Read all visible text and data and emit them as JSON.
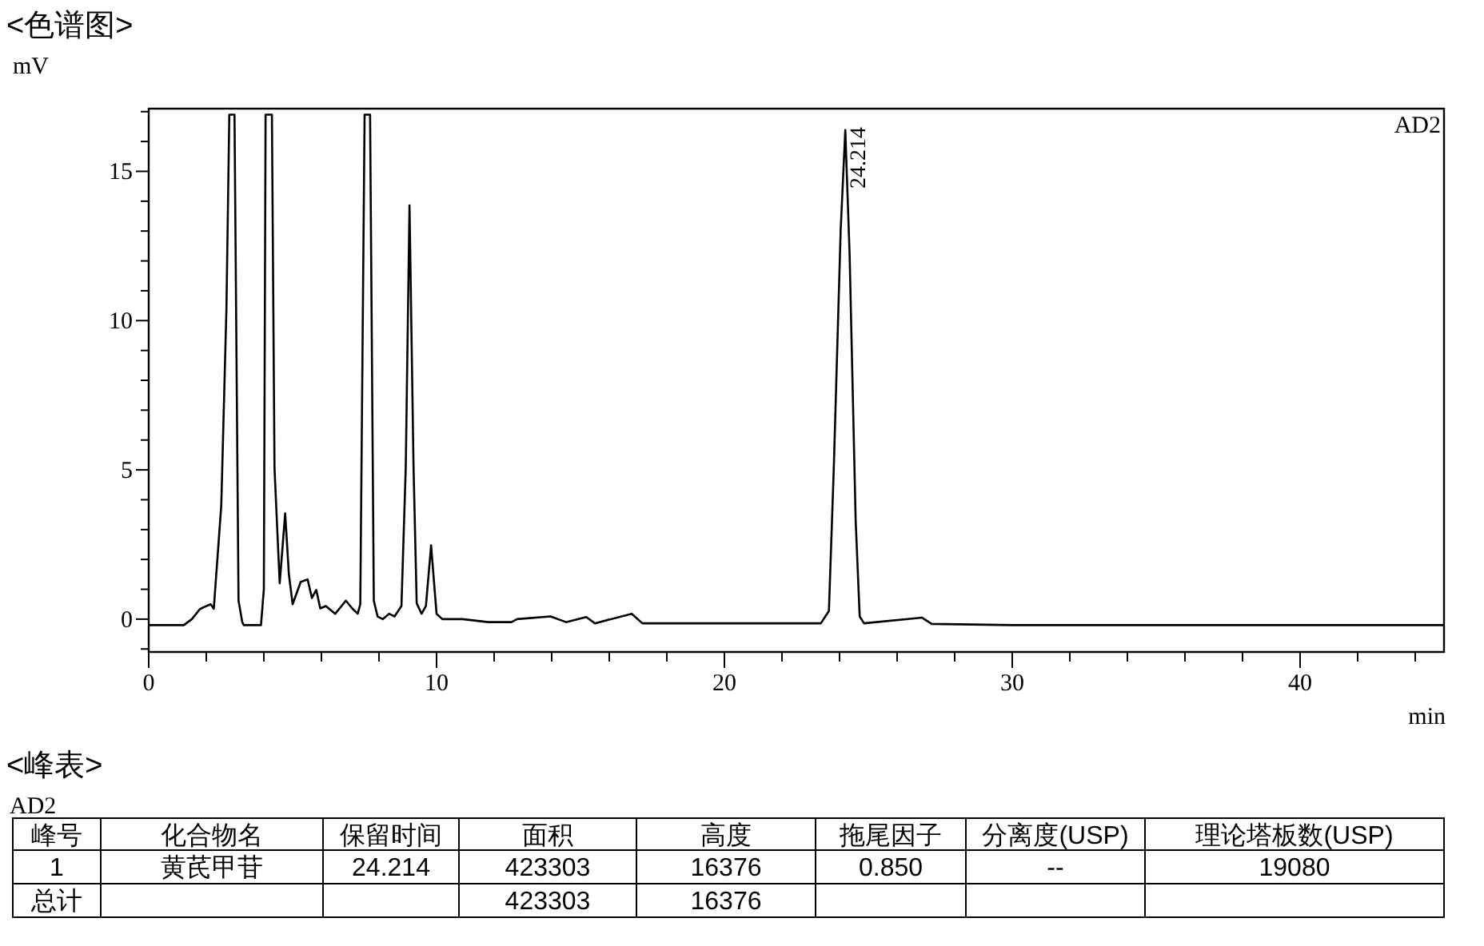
{
  "chart_data": {
    "type": "line",
    "title": "<色谱图>",
    "xlabel": "min",
    "ylabel": "mV",
    "x": [
      0,
      1.22,
      1.5,
      1.78,
      2.15,
      2.26,
      2.52,
      2.7,
      2.8,
      2.98,
      3.12,
      3.25,
      3.3,
      3.9,
      4.0,
      4.06,
      4.28,
      4.37,
      4.55,
      4.74,
      4.87,
      5.0,
      5.28,
      5.52,
      5.67,
      5.82,
      5.96,
      6.15,
      6.48,
      6.85,
      7.07,
      7.26,
      7.35,
      7.5,
      7.69,
      7.82,
      7.95,
      8.13,
      8.35,
      8.54,
      8.78,
      8.93,
      9.06,
      9.2,
      9.31,
      9.48,
      9.63,
      9.81,
      10.0,
      10.2,
      10.9,
      11.8,
      12.6,
      12.8,
      13.96,
      14.5,
      15.2,
      15.5,
      16.78,
      17.15,
      23.35,
      23.63,
      23.8,
      24.04,
      24.2,
      24.35,
      24.56,
      24.7,
      24.85,
      26.87,
      27.2,
      30,
      45
    ],
    "series": [
      {
        "color": "#000000",
        "values": [
          -0.2,
          -0.2,
          0.0,
          0.34,
          0.5,
          0.35,
          3.8,
          10.4,
          16.9,
          16.9,
          0.62,
          -0.1,
          -0.2,
          -0.2,
          1.0,
          16.9,
          16.9,
          5.06,
          1.2,
          3.54,
          1.5,
          0.5,
          1.25,
          1.33,
          0.71,
          0.98,
          0.36,
          0.44,
          0.18,
          0.62,
          0.36,
          0.18,
          0.5,
          16.9,
          16.9,
          0.62,
          0.09,
          0.0,
          0.18,
          0.09,
          0.44,
          5.1,
          13.86,
          5.1,
          0.53,
          0.18,
          0.44,
          2.47,
          0.18,
          0.0,
          0.0,
          -0.1,
          -0.1,
          0.0,
          0.09,
          -0.1,
          0.07,
          -0.14,
          0.18,
          -0.14,
          -0.14,
          0.27,
          5.06,
          13.06,
          16.38,
          12.2,
          3.3,
          0.09,
          -0.14,
          0.05,
          -0.16,
          -0.2,
          -0.2
        ]
      }
    ],
    "xlim": [
      0,
      45
    ],
    "ylim": [
      -1.1,
      17.1
    ],
    "xticks": [
      0,
      {
        "value": 2,
        "label": null
      },
      {
        "value": 4,
        "label": null
      },
      {
        "value": 6,
        "label": null
      },
      {
        "value": 8,
        "label": null
      },
      10,
      {
        "value": 12,
        "label": null
      },
      {
        "value": 14,
        "label": null
      },
      {
        "value": 16,
        "label": null
      },
      {
        "value": 18,
        "label": null
      },
      20,
      {
        "value": 22,
        "label": null
      },
      {
        "value": 24,
        "label": null
      },
      {
        "value": 26,
        "label": null
      },
      {
        "value": 28,
        "label": null
      },
      30,
      {
        "value": 32,
        "label": null
      },
      {
        "value": 34,
        "label": null
      },
      {
        "value": 36,
        "label": null
      },
      {
        "value": 38,
        "label": null
      },
      40,
      {
        "value": 42,
        "label": null
      },
      {
        "value": 44,
        "label": null
      }
    ],
    "yticks": [
      {
        "value": -1,
        "label": null
      },
      0,
      {
        "value": 1,
        "label": null
      },
      {
        "value": 2,
        "label": null
      },
      {
        "value": 3,
        "label": null
      },
      {
        "value": 4,
        "label": null
      },
      5,
      {
        "value": 6,
        "label": null
      },
      {
        "value": 7,
        "label": null
      },
      {
        "value": 8,
        "label": null
      },
      {
        "value": 9,
        "label": null
      },
      10,
      {
        "value": 11,
        "label": null
      },
      {
        "value": 12,
        "label": null
      },
      {
        "value": 13,
        "label": null
      },
      {
        "value": 14,
        "label": null
      },
      15,
      {
        "value": 16,
        "label": null
      },
      {
        "value": 17,
        "label": null
      }
    ],
    "annotations": [
      {
        "text": "24.214",
        "x": 24.214,
        "y": 16.38
      },
      "AD2",
      "<峰表>",
      "AD2",
      "峰号",
      "化合物名",
      "保留时间",
      "面积",
      "高度",
      "拖尾因子",
      "分离度(USP)",
      "理论塔板数(USP)",
      "1",
      "黄芪甲苷",
      "24.214",
      "423303",
      "16376",
      "0.850",
      "--",
      "19080",
      "总计",
      null,
      null,
      "423303",
      "16376",
      null,
      null,
      null
    ]
  }
}
